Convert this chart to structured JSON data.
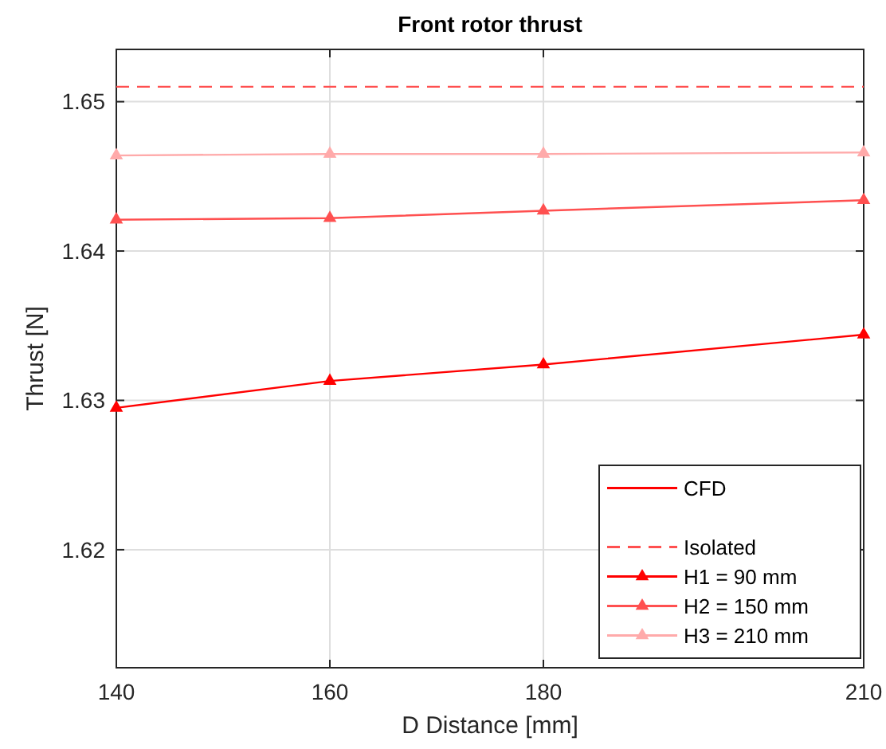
{
  "chart_data": {
    "type": "line",
    "title": "Front rotor thrust",
    "xlabel": "D Distance [mm]",
    "ylabel": "Thrust [N]",
    "legend_title": "CFD",
    "x": [
      140,
      160,
      180,
      210
    ],
    "series": [
      {
        "name": "Isolated",
        "color": "#ff5050",
        "values": [
          1.651,
          1.651,
          1.651,
          1.651
        ],
        "line_style": "dashed",
        "marker": "none"
      },
      {
        "name": "H1 = 90 mm",
        "color": "#ff0000",
        "values": [
          1.6295,
          1.6313,
          1.6324,
          1.6344
        ]
      },
      {
        "name": "H2 = 150 mm",
        "color": "#ff5050",
        "values": [
          1.6421,
          1.6422,
          1.6427,
          1.6434
        ]
      },
      {
        "name": "H3 = 210 mm",
        "color": "#ffaaaa",
        "values": [
          1.6464,
          1.6465,
          1.6465,
          1.6466
        ]
      }
    ],
    "xlim": [
      140,
      210
    ],
    "ylim": [
      1.6121,
      1.6535
    ],
    "xticks": [
      140,
      160,
      180,
      210
    ],
    "yticks": [
      1.62,
      1.63,
      1.64,
      1.65
    ],
    "grid": true,
    "legend": "bottom right",
    "line_style": "solid",
    "marker": "triangle"
  }
}
